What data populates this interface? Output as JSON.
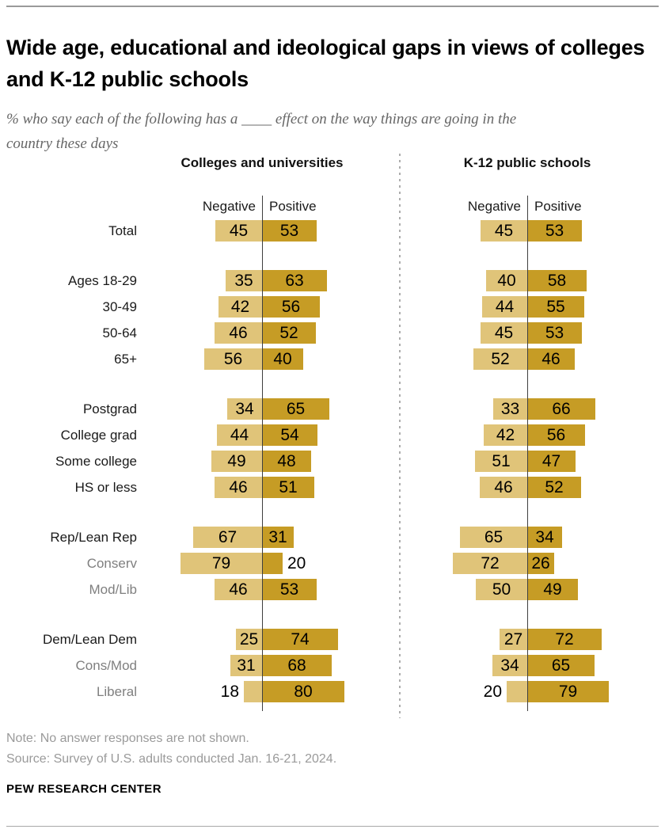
{
  "meta": {
    "title": "Wide age, educational and ideological gaps in views of colleges and K-12 public schools",
    "subtitle": "% who say each of the following has a ____ effect on the way things are going in the country these days",
    "note": "Note: No answer responses are not shown.",
    "source": "Source: Survey of U.S. adults conducted Jan. 16-21, 2024.",
    "brand": "PEW RESEARCH CENTER"
  },
  "chart_data": {
    "type": "bar",
    "variant": "paired diverging horizontal bars",
    "unit": "%",
    "legend_position": "above bars, either side of baseline",
    "colors": {
      "negative": "#e0c479",
      "positive": "#c69c25"
    },
    "categories": [
      "Total",
      "Ages 18-29",
      "30-49",
      "50-64",
      "65+",
      "Postgrad",
      "College grad",
      "Some college",
      "HS or less",
      "Rep/Lean Rep",
      "Conserv",
      "Mod/Lib",
      "Dem/Lean Dem",
      "Cons/Mod",
      "Liberal"
    ],
    "group_breaks_before": [
      "Ages 18-29",
      "Postgrad",
      "Rep/Lean Rep",
      "Dem/Lean Dem"
    ],
    "gray_categories": [
      "Conserv",
      "Mod/Lib",
      "Cons/Mod",
      "Liberal"
    ],
    "panels": [
      {
        "title": "Colleges and universities",
        "legend": {
          "negative": "Negative",
          "positive": "Positive"
        },
        "series": [
          {
            "name": "Negative",
            "values": [
              45,
              35,
              42,
              46,
              56,
              34,
              44,
              49,
              46,
              67,
              79,
              46,
              25,
              31,
              18
            ]
          },
          {
            "name": "Positive",
            "values": [
              53,
              63,
              56,
              52,
              40,
              65,
              54,
              48,
              51,
              31,
              20,
              53,
              74,
              68,
              80
            ]
          }
        ]
      },
      {
        "title": "K-12 public schools",
        "legend": {
          "negative": "Negative",
          "positive": "Positive"
        },
        "series": [
          {
            "name": "Negative",
            "values": [
              45,
              40,
              44,
              45,
              52,
              33,
              42,
              51,
              46,
              65,
              72,
              50,
              27,
              34,
              20
            ]
          },
          {
            "name": "Positive",
            "values": [
              53,
              58,
              55,
              53,
              46,
              66,
              56,
              47,
              52,
              34,
              26,
              49,
              72,
              65,
              79
            ]
          }
        ]
      }
    ]
  }
}
